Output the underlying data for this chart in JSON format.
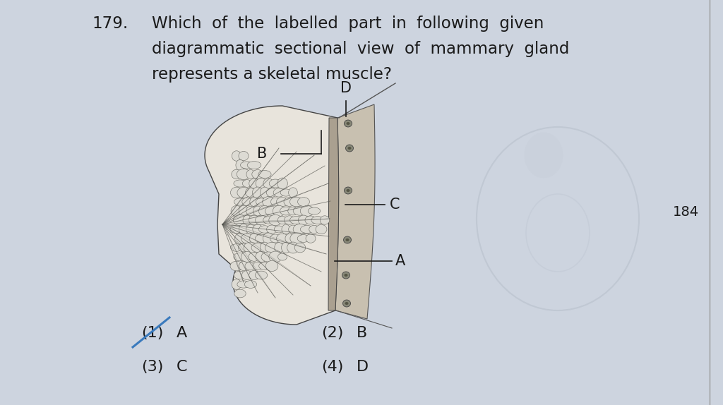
{
  "background_color": "#cdd4df",
  "question_number": "179.",
  "q_line1": "Which  of  the  labelled  part  in  following  given",
  "q_line2": "diagrammatic  sectional  view  of  mammary  gland",
  "q_line3": "represents a skeletal muscle?",
  "question_fontsize": 16.5,
  "question_color": "#1a1a1a",
  "label_color": "#1a1a1a",
  "label_fontsize": 15,
  "options_fontsize": 16,
  "options_color": "#1a1a1a",
  "answer_marker_color": "#3a7abd",
  "side_number": "184",
  "side_number_color": "#1a1a1a",
  "divider_color": "#999999",
  "watermark_color": "#b8c0cc"
}
